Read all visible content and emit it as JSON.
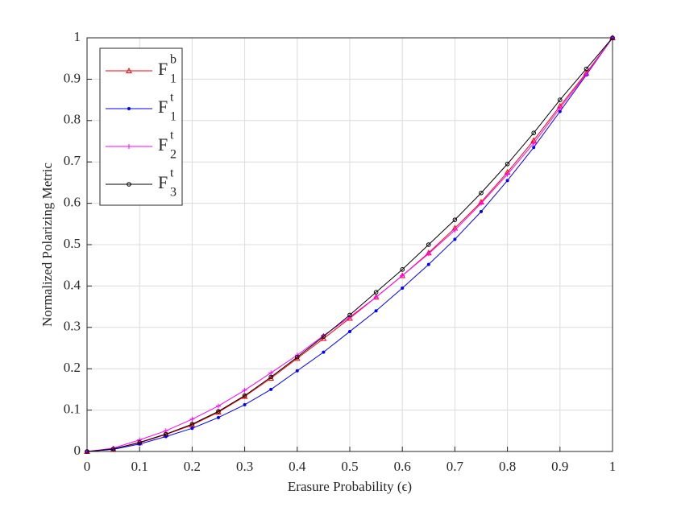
{
  "chart_data": {
    "type": "line",
    "xlabel": "Erasure Probability (ϵ)",
    "ylabel": "Normalized Polarizing Metric",
    "x": [
      0,
      0.05,
      0.1,
      0.15,
      0.2,
      0.25,
      0.3,
      0.35,
      0.4,
      0.45,
      0.5,
      0.55,
      0.6,
      0.65,
      0.7,
      0.75,
      0.8,
      0.85,
      0.9,
      0.95,
      1
    ],
    "series": [
      {
        "name": "F",
        "legend_sup": "b",
        "legend_sub": "1",
        "color": "#ff0000",
        "marker": "triangle",
        "values": [
          0,
          0.006,
          0.021,
          0.041,
          0.064,
          0.095,
          0.133,
          0.177,
          0.225,
          0.273,
          0.322,
          0.373,
          0.425,
          0.48,
          0.54,
          0.603,
          0.675,
          0.752,
          0.835,
          0.915,
          1
        ]
      },
      {
        "name": "F",
        "legend_sup": "t",
        "legend_sub": "1",
        "color": "#0000ff",
        "marker": "dot",
        "values": [
          0,
          0.005,
          0.018,
          0.036,
          0.056,
          0.082,
          0.113,
          0.15,
          0.195,
          0.24,
          0.29,
          0.34,
          0.395,
          0.452,
          0.513,
          0.58,
          0.655,
          0.735,
          0.822,
          0.91,
          1
        ]
      },
      {
        "name": "F",
        "legend_sup": "t",
        "legend_sub": "2",
        "color": "#ff00ff",
        "marker": "plus",
        "values": [
          0,
          0.008,
          0.028,
          0.05,
          0.078,
          0.11,
          0.148,
          0.19,
          0.233,
          0.28,
          0.325,
          0.373,
          0.425,
          0.478,
          0.535,
          0.6,
          0.67,
          0.745,
          0.83,
          0.912,
          1
        ]
      },
      {
        "name": "F",
        "legend_sup": "t",
        "legend_sub": "3",
        "color": "#000000",
        "marker": "circle",
        "values": [
          0,
          0.006,
          0.022,
          0.042,
          0.066,
          0.097,
          0.135,
          0.18,
          0.228,
          0.278,
          0.33,
          0.385,
          0.44,
          0.5,
          0.56,
          0.625,
          0.695,
          0.77,
          0.85,
          0.925,
          1
        ]
      }
    ],
    "xlim": [
      0,
      1
    ],
    "ylim": [
      0,
      1
    ],
    "xticks": [
      0,
      0.1,
      0.2,
      0.3,
      0.4,
      0.5,
      0.6,
      0.7,
      0.8,
      0.9,
      1
    ],
    "yticks": [
      0,
      0.1,
      0.2,
      0.3,
      0.4,
      0.5,
      0.6,
      0.7,
      0.8,
      0.9,
      1
    ],
    "grid": true,
    "legend": "upper-left"
  }
}
